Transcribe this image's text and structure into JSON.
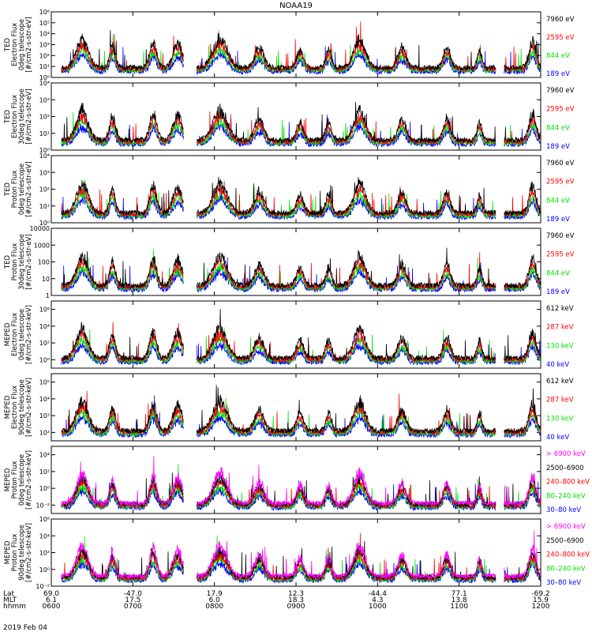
{
  "title": "NOAA19",
  "date_label": "2019 Feb 04",
  "colors": {
    "black": "#000000",
    "red": "#ff0000",
    "green": "#00e000",
    "blue": "#0000ff",
    "magenta": "#ff00ff"
  },
  "time_axis": {
    "row_labels": [
      "Lat",
      "MLT",
      "hhmm"
    ],
    "ticks": [
      {
        "hhmm": "0600",
        "lat": "69.0",
        "mlt": "6.1"
      },
      {
        "hhmm": "0700",
        "lat": "-47.0",
        "mlt": "17.5"
      },
      {
        "hhmm": "0800",
        "lat": "17.9",
        "mlt": "6.0"
      },
      {
        "hhmm": "0900",
        "lat": "12.3",
        "mlt": "18.3"
      },
      {
        "hhmm": "1000",
        "lat": "-44.4",
        "mlt": "4.3"
      },
      {
        "hhmm": "1100",
        "lat": "77.1",
        "mlt": "13.8"
      },
      {
        "hhmm": "1200",
        "lat": "-69.2",
        "mlt": "15.9"
      }
    ]
  },
  "chart_data": [
    {
      "type": "line",
      "ylabel_lines": [
        "TED",
        "Electron Flux",
        "0deg telescope",
        "[#/cm2-s-str-eV]"
      ],
      "yscale": "log",
      "ylim": [
        1,
        1000000
      ],
      "ytick_labels": [
        "10⁰",
        "10¹",
        "10²",
        "10³",
        "10⁴",
        "10⁵",
        "10⁶"
      ],
      "series": [
        {
          "name": "7960 eV",
          "color": "#000000"
        },
        {
          "name": "2595 eV",
          "color": "#ff0000"
        },
        {
          "name": "844 eV",
          "color": "#00e000"
        },
        {
          "name": "189 eV",
          "color": "#0000ff"
        }
      ]
    },
    {
      "type": "line",
      "ylabel_lines": [
        "TED",
        "Electron Flux",
        "30deg telescope",
        "[#/cm2-s-str-eV]"
      ],
      "yscale": "log",
      "ylim": [
        1,
        100000
      ],
      "ytick_labels": [
        "10⁰",
        "10¹",
        "10²",
        "10³",
        "10⁴"
      ],
      "series": [
        {
          "name": "7960 eV",
          "color": "#000000"
        },
        {
          "name": "2595 eV",
          "color": "#ff0000"
        },
        {
          "name": "844 eV",
          "color": "#00e000"
        },
        {
          "name": "189 eV",
          "color": "#0000ff"
        }
      ]
    },
    {
      "type": "line",
      "ylabel_lines": [
        "TED",
        "Proton Flux",
        "0deg telescope",
        "[#/cm2-s-str-eV]"
      ],
      "yscale": "log",
      "ylim": [
        1,
        100000
      ],
      "ytick_labels": [
        "10⁰",
        "10¹",
        "10²",
        "10³",
        "10⁴"
      ],
      "series": [
        {
          "name": "7960 eV",
          "color": "#000000"
        },
        {
          "name": "2595 eV",
          "color": "#ff0000"
        },
        {
          "name": "844 eV",
          "color": "#00e000"
        },
        {
          "name": "189 eV",
          "color": "#0000ff"
        }
      ]
    },
    {
      "type": "line",
      "ylabel_lines": [
        "TED",
        "Proton Flux",
        "30deg telescope",
        "[#/cm2-s-str-eV]"
      ],
      "yscale": "log",
      "ylim": [
        1,
        10000
      ],
      "ytick_labels": [
        "1",
        "10",
        "100",
        "1000",
        "10000"
      ],
      "series": [
        {
          "name": "7960 eV",
          "color": "#000000"
        },
        {
          "name": "2595 eV",
          "color": "#ff0000"
        },
        {
          "name": "844 eV",
          "color": "#00e000"
        },
        {
          "name": "189 eV",
          "color": "#0000ff"
        }
      ]
    },
    {
      "type": "line",
      "ylabel_lines": [
        "MEPED",
        "Electron Flux",
        "0deg telescope",
        "[#/cm2-s-str-keV]"
      ],
      "yscale": "log",
      "ylim": [
        1,
        1000000
      ],
      "ytick_labels": [
        "10⁰",
        "10²",
        "10⁴",
        "10⁶"
      ],
      "series": [
        {
          "name": "612 keV",
          "color": "#000000"
        },
        {
          "name": "287 keV",
          "color": "#ff0000"
        },
        {
          "name": "130 keV",
          "color": "#00e000"
        },
        {
          "name": "40 keV",
          "color": "#0000ff"
        }
      ]
    },
    {
      "type": "line",
      "ylabel_lines": [
        "MEPED",
        "Electron Flux",
        "90deg telescope",
        "[#/cm2-s-str-keV]"
      ],
      "yscale": "log",
      "ylim": [
        10,
        1000000
      ],
      "ytick_labels": [
        "10²",
        "10³",
        "10⁴",
        "10⁵"
      ],
      "series": [
        {
          "name": "612 keV",
          "color": "#000000"
        },
        {
          "name": "287 keV",
          "color": "#ff0000"
        },
        {
          "name": "130 keV",
          "color": "#00e000"
        },
        {
          "name": "40 keV",
          "color": "#0000ff"
        }
      ]
    },
    {
      "type": "line",
      "ylabel_lines": [
        "MEPED",
        "Proton Flux",
        "0deg telescope",
        "[#/cm2-s-str-keV]"
      ],
      "yscale": "log",
      "ylim": [
        0.01,
        1000000
      ],
      "ytick_labels": [
        "10⁻²",
        "10⁰",
        "10²",
        "10⁴"
      ],
      "series": [
        {
          "name": "> 6900 keV",
          "color": "#ff00ff"
        },
        {
          "name": "2500–6900",
          "color": "#000000"
        },
        {
          "name": "240–800 keV",
          "color": "#ff0000"
        },
        {
          "name": "80–240 keV",
          "color": "#00e000"
        },
        {
          "name": "30–80 keV",
          "color": "#0000ff"
        }
      ]
    },
    {
      "type": "line",
      "ylabel_lines": [
        "MEPED",
        "Proton Flux",
        "90deg telescope",
        "[#/cm2-s-str-keV]"
      ],
      "yscale": "log",
      "ylim": [
        0.01,
        1000000
      ],
      "ytick_labels": [
        "10⁻²",
        "10⁰",
        "10²",
        "10⁴",
        "10⁶"
      ],
      "series": [
        {
          "name": "> 6900 keV",
          "color": "#ff00ff"
        },
        {
          "name": "2500–6900",
          "color": "#000000"
        },
        {
          "name": "240–800 keV",
          "color": "#ff0000"
        },
        {
          "name": "80–240 keV",
          "color": "#00e000"
        },
        {
          "name": "30–80 keV",
          "color": "#0000ff"
        }
      ]
    }
  ]
}
